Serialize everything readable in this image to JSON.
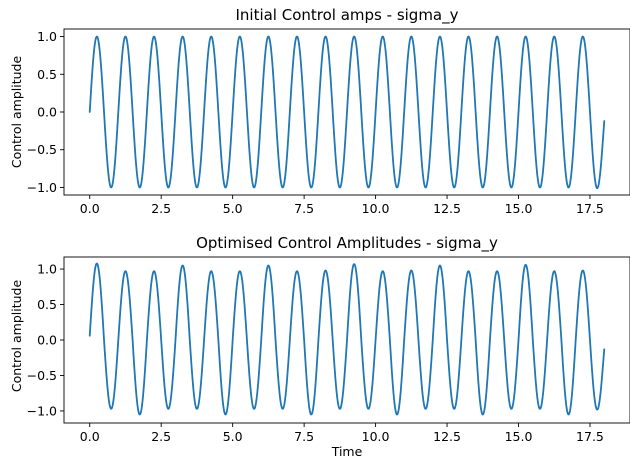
{
  "chart_data": [
    {
      "type": "line",
      "title": "Initial Control amps - sigma_y",
      "xlabel": "",
      "ylabel": "Control amplitude",
      "xlim": [
        -0.9,
        18.9
      ],
      "ylim": [
        -1.1,
        1.1
      ],
      "xticks": [
        0.0,
        2.5,
        5.0,
        7.5,
        10.0,
        12.5,
        15.0,
        17.5
      ],
      "xtick_labels": [
        "0.0",
        "2.5",
        "5.0",
        "7.5",
        "10.0",
        "12.5",
        "15.0",
        "17.5"
      ],
      "yticks": [
        1.0,
        0.5,
        0.0,
        -0.5,
        -1.0
      ],
      "ytick_labels": [
        "1.0",
        "0.5",
        "0.0",
        "−0.5",
        "−1.0"
      ],
      "grid": false,
      "series": [
        {
          "color": "#1f77b4",
          "x_range": [
            0.0,
            18.0
          ],
          "form": "sine",
          "frequency_cycles_per_unit": 1.0,
          "amplitude": 1.0,
          "start_value": 0.0,
          "end_value": -0.12
        }
      ]
    },
    {
      "type": "line",
      "title": "Optimised Control Amplitudes - sigma_y",
      "xlabel": "Time",
      "ylabel": "Control amplitude",
      "xlim": [
        -0.9,
        18.9
      ],
      "ylim": [
        -1.17,
        1.17
      ],
      "xticks": [
        0.0,
        2.5,
        5.0,
        7.5,
        10.0,
        12.5,
        15.0,
        17.5
      ],
      "xtick_labels": [
        "0.0",
        "2.5",
        "5.0",
        "7.5",
        "10.0",
        "12.5",
        "15.0",
        "17.5"
      ],
      "yticks": [
        1.0,
        0.5,
        0.0,
        -0.5,
        -1.0
      ],
      "ytick_labels": [
        "1.0",
        "0.5",
        "0.0",
        "−0.5",
        "−1.0"
      ],
      "grid": false,
      "series": [
        {
          "color": "#1f77b4",
          "x_range": [
            0.0,
            18.0
          ],
          "form": "sine",
          "frequency_cycles_per_unit": 1.0,
          "amplitude": 1.0,
          "start_value": 0.06,
          "end_value": -0.13,
          "peaks": [
            1.07,
            0.97,
            0.97,
            1.05,
            0.97,
            0.97,
            1.05,
            0.97,
            0.98,
            1.07,
            0.97,
            0.98,
            1.05,
            0.97,
            0.97,
            1.06,
            0.97,
            0.98
          ],
          "troughs": [
            -0.97,
            -1.05,
            -0.97,
            -0.97,
            -1.05,
            -0.97,
            -0.97,
            -1.05,
            -0.97,
            -0.97,
            -1.05,
            -0.97,
            -0.97,
            -1.05,
            -0.97,
            -0.97,
            -1.05,
            -0.97
          ]
        }
      ]
    }
  ]
}
